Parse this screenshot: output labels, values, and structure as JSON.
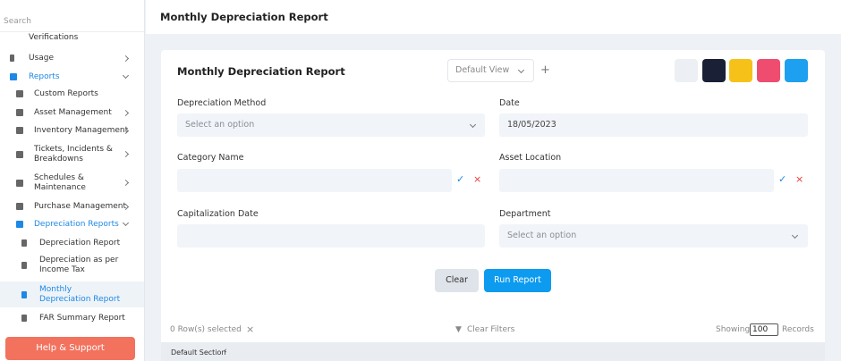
{
  "sidebar": {
    "search_placeholder": "Search",
    "items": [
      {
        "label": "Verifications"
      },
      {
        "label": "Usage"
      },
      {
        "label": "Reports"
      },
      {
        "label": "Custom Reports"
      },
      {
        "label": "Asset Management"
      },
      {
        "label": "Inventory Management"
      },
      {
        "label": "Tickets, Incidents & Breakdowns"
      },
      {
        "label": "Schedules & Maintenance"
      },
      {
        "label": "Purchase Management"
      },
      {
        "label": "Depreciation Reports"
      },
      {
        "label": "Depreciation Report"
      },
      {
        "label": "Depreciation as per Income Tax"
      },
      {
        "label": "Monthly Depreciation Report"
      },
      {
        "label": "FAR Summary Report"
      }
    ],
    "help_button": "Help & Support"
  },
  "header": {
    "title": "Monthly Depreciation Report"
  },
  "report": {
    "title": "Monthly Depreciation Report",
    "view": "Default View",
    "fields": [
      {
        "label": "Depreciation Method",
        "placeholder": "Select an option"
      },
      {
        "label": "Date",
        "value": "18/05/2023"
      },
      {
        "label": "Category Name"
      },
      {
        "label": "Asset Location"
      },
      {
        "label": "Capitalization Date"
      },
      {
        "label": "Department",
        "placeholder": "Select an option"
      }
    ],
    "buttons": {
      "clear": "Clear",
      "run": "Run Report"
    },
    "footer": {
      "selected": "0 Row(s) selected",
      "clear_filters": "Clear Filters",
      "showing": "Showing",
      "page_size": "100",
      "records": "Records",
      "section": "Default Section"
    }
  }
}
